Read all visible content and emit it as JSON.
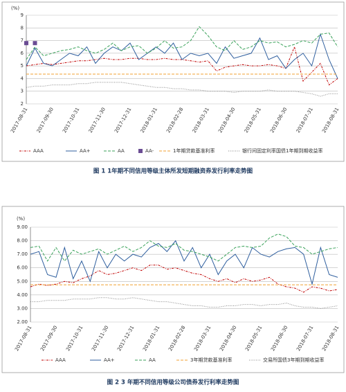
{
  "chart_data": [
    {
      "type": "line",
      "y_unit": "(%)",
      "caption": "图 1 1年期不同信用等级主体所发短期融资券发行利率走势图",
      "categories": [
        "2017-08-31",
        null,
        null,
        "2017-09-30",
        null,
        null,
        "2017-10-31",
        null,
        null,
        "2017-11-30",
        null,
        null,
        "2017-12-31",
        null,
        null,
        "2018-01-31",
        null,
        null,
        "2018-02-28",
        null,
        null,
        "2018-03-31",
        null,
        null,
        "2018-04-30",
        null,
        null,
        "2018-05-31",
        null,
        null,
        "2018-06-30",
        null,
        null,
        "2018-07-31",
        null,
        null,
        "2018-08-31"
      ],
      "ylim": [
        2,
        9
      ],
      "yticks": [
        2,
        3,
        4,
        5,
        6,
        7,
        8,
        9
      ],
      "grid": true,
      "series": [
        {
          "name": "AAA",
          "color": "#c00000",
          "line": "dashdot",
          "values": [
            5.0,
            5.1,
            5.2,
            5.1,
            5.2,
            5.3,
            5.4,
            5.4,
            5.5,
            5.6,
            5.5,
            5.5,
            5.6,
            5.6,
            5.5,
            5.5,
            5.6,
            5.5,
            5.5,
            5.4,
            5.3,
            5.4,
            4.6,
            4.9,
            5.0,
            5.1,
            5.0,
            5.0,
            5.1,
            5.0,
            4.8,
            6.5,
            3.8,
            4.5,
            5.2,
            3.5,
            4.0
          ]
        },
        {
          "name": "AA+",
          "color": "#2e5e9e",
          "line": "solid",
          "values": [
            5.0,
            6.4,
            5.2,
            5.0,
            5.5,
            6.0,
            5.8,
            6.5,
            5.2,
            6.0,
            6.5,
            6.2,
            6.8,
            5.5,
            6.0,
            6.5,
            6.0,
            6.8,
            5.5,
            6.0,
            5.8,
            6.0,
            5.2,
            6.5,
            5.6,
            5.8,
            6.0,
            7.2,
            5.5,
            5.8,
            4.8,
            5.5,
            6.0,
            5.0,
            7.5,
            5.5,
            4.0
          ]
        },
        {
          "name": "AA",
          "color": "#3aa25a",
          "line": "dashed",
          "values": [
            5.5,
            6.5,
            5.8,
            6.0,
            6.2,
            6.3,
            6.5,
            6.2,
            6.0,
            6.3,
            6.8,
            6.2,
            6.5,
            6.6,
            6.0,
            6.4,
            7.0,
            6.4,
            6.5,
            7.0,
            8.1,
            7.4,
            6.5,
            6.2,
            7.0,
            6.3,
            6.5,
            7.0,
            6.8,
            6.9,
            6.5,
            6.7,
            7.0,
            6.8,
            7.5,
            7.6,
            6.5
          ]
        },
        {
          "name": "AA-",
          "color": "#6a4c93",
          "line": "none",
          "values": [
            6.8,
            6.8,
            null,
            null,
            null,
            null,
            null,
            null,
            null,
            null,
            null,
            null,
            null,
            null,
            null,
            null,
            null,
            null,
            null,
            null,
            null,
            null,
            null,
            null,
            null,
            null,
            null,
            null,
            null,
            null,
            null,
            null,
            null,
            null,
            null,
            null,
            null
          ]
        },
        {
          "name": "1年期贷款基准利率",
          "color": "#f0a030",
          "line": "dashed",
          "values": [
            4.35,
            4.35,
            4.35,
            4.35,
            4.35,
            4.35,
            4.35,
            4.35,
            4.35,
            4.35,
            4.35,
            4.35,
            4.35,
            4.35,
            4.35,
            4.35,
            4.35,
            4.35,
            4.35,
            4.35,
            4.35,
            4.35,
            4.35,
            4.35,
            4.35,
            4.35,
            4.35,
            4.35,
            4.35,
            4.35,
            4.35,
            4.35,
            4.35,
            4.35,
            4.35,
            4.35,
            4.35
          ]
        },
        {
          "name": "银行间固定利率国债1年期到期收益率",
          "color": "#888888",
          "line": "dotted",
          "values": [
            3.3,
            3.4,
            3.4,
            3.5,
            3.5,
            3.5,
            3.6,
            3.6,
            3.7,
            3.7,
            3.7,
            3.7,
            3.6,
            3.5,
            3.4,
            3.3,
            3.3,
            3.2,
            3.2,
            3.1,
            3.1,
            3.0,
            3.0,
            3.0,
            2.9,
            3.0,
            3.0,
            3.0,
            3.1,
            3.0,
            3.0,
            3.0,
            2.9,
            2.8,
            2.6,
            2.8,
            2.8
          ]
        }
      ]
    },
    {
      "type": "line",
      "y_unit": "(%)",
      "caption": "图 2 3 年期不同信用等级公司债券发行利率走势图",
      "categories": [
        "2017-08-31",
        null,
        null,
        "2017-09-30",
        null,
        null,
        "2017-10-31",
        null,
        null,
        "2017-11-30",
        null,
        null,
        "2017-12-31",
        null,
        null,
        "2018-01-31",
        null,
        null,
        "2018-02-28",
        null,
        null,
        "2018-03-31",
        null,
        null,
        "2018-04-30",
        null,
        null,
        "2018-05-31",
        null,
        null,
        "2018-06-30",
        null,
        null,
        "2018-07-31",
        null,
        null,
        "2018-08-31"
      ],
      "ylim": [
        2,
        9
      ],
      "yticks": [
        {
          "value": 2,
          "label": "2.00"
        },
        {
          "value": 3,
          "label": "3.00"
        },
        {
          "value": 4,
          "label": "4.00"
        },
        {
          "value": 5,
          "label": "5.00"
        },
        {
          "value": 6,
          "label": "6.00"
        },
        {
          "value": 7,
          "label": "7.00"
        },
        {
          "value": 8,
          "label": "8.00"
        },
        {
          "value": 9,
          "label": "9.00"
        }
      ],
      "grid": true,
      "series": [
        {
          "name": "AAA",
          "color": "#c00000",
          "line": "dashdot",
          "values": [
            4.6,
            4.8,
            4.7,
            4.8,
            5.0,
            4.9,
            5.2,
            5.4,
            5.8,
            5.5,
            5.6,
            5.8,
            6.0,
            5.8,
            6.2,
            6.2,
            5.9,
            6.0,
            5.8,
            5.6,
            5.5,
            5.2,
            5.0,
            5.2,
            4.9,
            5.2,
            5.0,
            5.1,
            5.3,
            4.8,
            4.6,
            4.5,
            4.2,
            4.6,
            4.5,
            4.3,
            4.4
          ]
        },
        {
          "name": "AA+",
          "color": "#2e5e9e",
          "line": "solid",
          "values": [
            7.0,
            7.2,
            5.5,
            5.3,
            7.5,
            5.2,
            6.5,
            5.0,
            7.2,
            6.0,
            7.0,
            6.5,
            7.0,
            6.8,
            7.5,
            7.8,
            7.2,
            8.0,
            6.5,
            7.5,
            6.0,
            7.0,
            5.5,
            6.5,
            7.0,
            6.0,
            7.5,
            7.0,
            6.8,
            7.2,
            7.4,
            7.5,
            7.0,
            4.8,
            7.5,
            5.5,
            5.3
          ]
        },
        {
          "name": "AA",
          "color": "#3aa25a",
          "line": "dashed",
          "values": [
            7.5,
            7.6,
            6.5,
            7.5,
            6.5,
            7.3,
            7.0,
            7.2,
            7.4,
            7.0,
            7.3,
            7.6,
            7.2,
            7.5,
            8.0,
            7.6,
            7.5,
            7.8,
            7.3,
            7.2,
            7.0,
            6.8,
            6.5,
            7.0,
            7.5,
            7.6,
            7.5,
            7.6,
            8.2,
            8.5,
            8.3,
            7.6,
            7.5,
            7.0,
            7.2,
            7.4,
            7.5
          ]
        },
        {
          "name": "3年期贷款基准利率",
          "color": "#f0a030",
          "line": "dashed",
          "values": [
            4.75,
            4.75,
            4.75,
            4.75,
            4.75,
            4.75,
            4.75,
            4.75,
            4.75,
            4.75,
            4.75,
            4.75,
            4.75,
            4.75,
            4.75,
            4.75,
            4.75,
            4.75,
            4.75,
            4.75,
            4.75,
            4.75,
            4.75,
            4.75,
            4.75,
            4.75,
            4.75,
            4.75,
            4.75,
            4.75,
            4.75,
            4.75,
            4.75,
            4.75,
            4.75,
            4.75,
            4.75
          ]
        },
        {
          "name": "交易所国债3年期到期收益率",
          "color": "#888888",
          "line": "dotted",
          "values": [
            3.5,
            3.5,
            3.6,
            3.6,
            3.6,
            3.7,
            3.7,
            3.7,
            3.8,
            3.8,
            3.7,
            3.7,
            3.8,
            3.7,
            3.6,
            3.5,
            3.5,
            3.4,
            3.3,
            3.2,
            3.2,
            3.1,
            3.1,
            3.2,
            3.2,
            3.3,
            3.3,
            3.2,
            3.3,
            3.3,
            3.4,
            3.2,
            3.1,
            3.1,
            3.0,
            3.1,
            3.2
          ]
        }
      ]
    }
  ]
}
